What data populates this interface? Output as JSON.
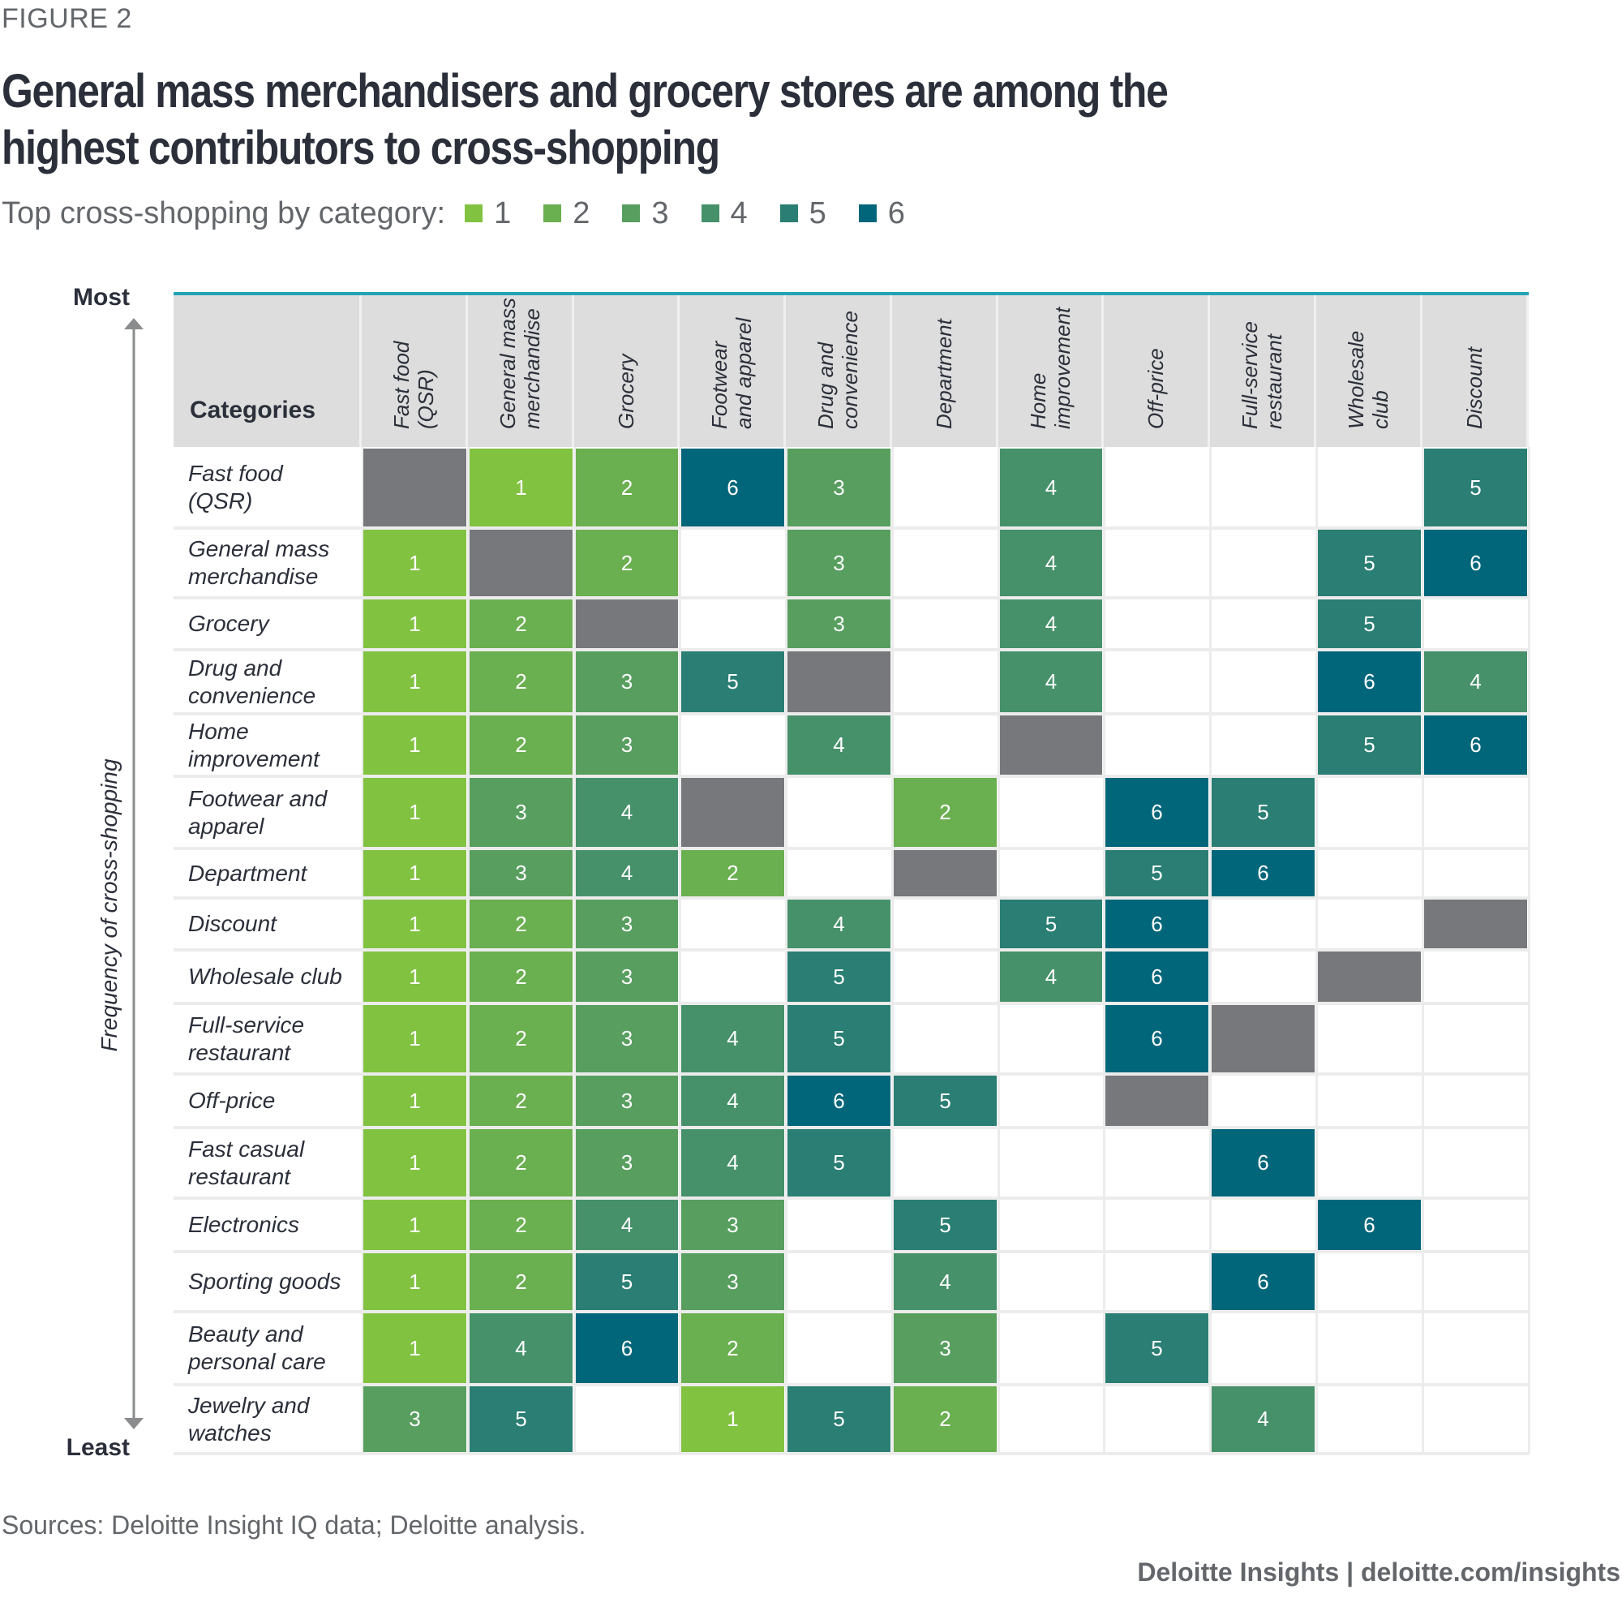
{
  "figure_label": "FIGURE 2",
  "title": "General mass merchandisers and grocery stores are among the highest contributors to cross-shopping",
  "legend": {
    "label": "Top cross-shopping by category:",
    "items": [
      {
        "rank": "1",
        "color": "#81C241"
      },
      {
        "rank": "2",
        "color": "#6AAF50"
      },
      {
        "rank": "3",
        "color": "#579E5F"
      },
      {
        "rank": "4",
        "color": "#46916A"
      },
      {
        "rank": "5",
        "color": "#2A7E73"
      },
      {
        "rank": "6",
        "color": "#02667A"
      }
    ]
  },
  "colors": {
    "self": "#76787B",
    "header_bg": "#DCDDDC",
    "header_line": "#22A3B5",
    "empty": "#FFFFFF"
  },
  "axis": {
    "top_label": "Most",
    "bottom_label": "Least",
    "title": "Frequency of cross-shopping"
  },
  "chart_data": {
    "type": "heatmap",
    "title": "General mass merchandisers and grocery stores are among the highest contributors to cross-shopping",
    "subtitle": "Top cross-shopping by category: 1–6",
    "corner_header": "Categories",
    "ylabel": "Frequency of cross-shopping",
    "y_range_labels": [
      "Most",
      "Least"
    ],
    "columns": [
      "Fast food\n(QSR)",
      "General mass\nmerchandise",
      "Grocery",
      "Footwear\nand apparel",
      "Drug and\nconvenience",
      "Department",
      "Home\nimprovement",
      "Off-price",
      "Full-service\nrestaurant",
      "Wholesale\nclub",
      "Discount"
    ],
    "rows": [
      {
        "label": "Fast food\n(QSR)",
        "values": [
          "self",
          1,
          2,
          6,
          3,
          null,
          4,
          null,
          null,
          null,
          5
        ]
      },
      {
        "label": "General mass\nmerchandise",
        "values": [
          1,
          "self",
          2,
          null,
          3,
          null,
          4,
          null,
          null,
          5,
          6
        ]
      },
      {
        "label": "Grocery",
        "values": [
          1,
          2,
          "self",
          null,
          3,
          null,
          4,
          null,
          null,
          5,
          null
        ]
      },
      {
        "label": "Drug and\nconvenience",
        "values": [
          1,
          2,
          3,
          5,
          "self",
          null,
          4,
          null,
          null,
          6,
          4
        ]
      },
      {
        "label": "Home\nimprovement",
        "values": [
          1,
          2,
          3,
          null,
          4,
          null,
          "self",
          null,
          null,
          5,
          6
        ]
      },
      {
        "label": "Footwear and\napparel",
        "values": [
          1,
          3,
          4,
          "self",
          null,
          2,
          null,
          6,
          5,
          null,
          null
        ]
      },
      {
        "label": "Department",
        "values": [
          1,
          3,
          4,
          2,
          null,
          "self",
          null,
          5,
          6,
          null,
          null
        ]
      },
      {
        "label": "Discount",
        "values": [
          1,
          2,
          3,
          null,
          4,
          null,
          5,
          6,
          null,
          null,
          "self"
        ]
      },
      {
        "label": "Wholesale club",
        "values": [
          1,
          2,
          3,
          null,
          5,
          null,
          4,
          6,
          null,
          "self",
          null
        ]
      },
      {
        "label": "Full-service\nrestaurant",
        "values": [
          1,
          2,
          3,
          4,
          5,
          null,
          null,
          6,
          "self",
          null,
          null
        ]
      },
      {
        "label": "Off-price",
        "values": [
          1,
          2,
          3,
          4,
          6,
          5,
          null,
          "self",
          null,
          null,
          null
        ]
      },
      {
        "label": "Fast casual\nrestaurant",
        "values": [
          1,
          2,
          3,
          4,
          5,
          null,
          null,
          null,
          6,
          null,
          null
        ]
      },
      {
        "label": "Electronics",
        "values": [
          1,
          2,
          4,
          3,
          null,
          5,
          null,
          null,
          null,
          6,
          null
        ]
      },
      {
        "label": "Sporting goods",
        "values": [
          1,
          2,
          5,
          3,
          null,
          4,
          null,
          null,
          6,
          null,
          null
        ]
      },
      {
        "label": "Beauty and\npersonal care",
        "values": [
          1,
          4,
          6,
          2,
          null,
          3,
          null,
          5,
          null,
          null,
          null
        ]
      },
      {
        "label": "Jewelry and\nwatches",
        "values": [
          3,
          5,
          null,
          1,
          5,
          2,
          null,
          null,
          4,
          null,
          null
        ]
      }
    ],
    "value_meaning": "rank of top cross-shopping category (1 = highest); 'self' = same category; null = not in top 6"
  },
  "footer": {
    "sources": "Sources: Deloitte Insight IQ data; Deloitte analysis.",
    "credit": "Deloitte Insights | deloitte.com/insights"
  }
}
